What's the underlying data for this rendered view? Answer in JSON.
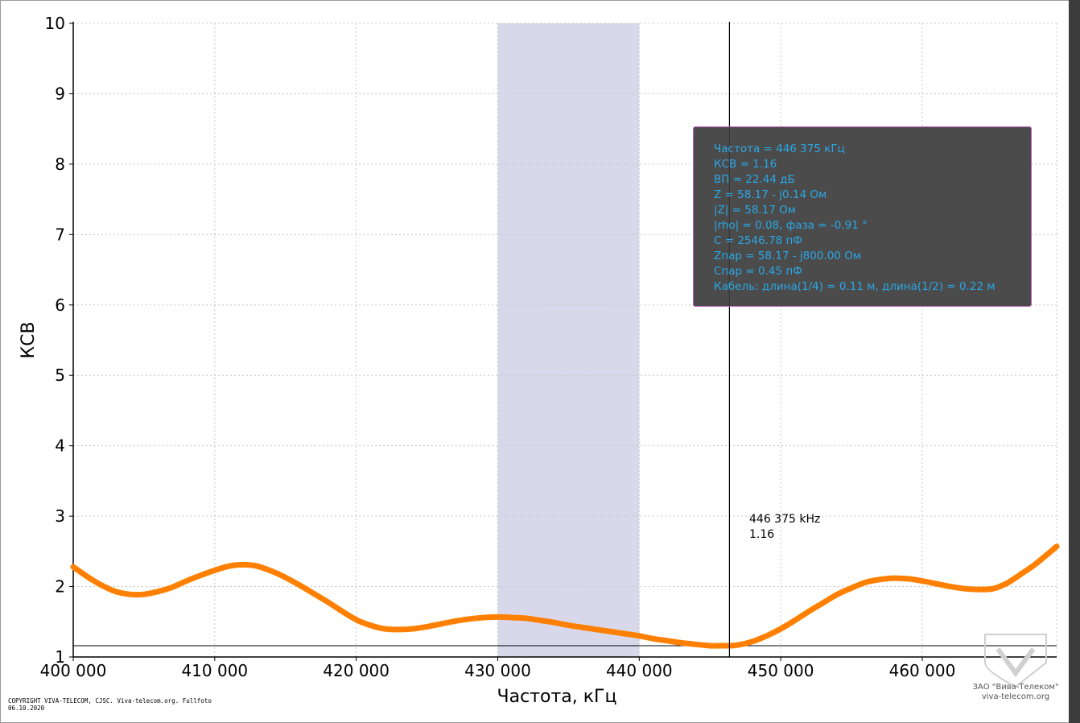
{
  "chart_data": {
    "type": "line",
    "xlabel": "Частота, кГц",
    "ylabel": "КСВ",
    "xlim": [
      400000,
      469500
    ],
    "ylim": [
      1,
      10
    ],
    "x_ticks": [
      400000,
      410000,
      420000,
      430000,
      440000,
      450000,
      460000
    ],
    "x_tick_labels": [
      "400 000",
      "410 000",
      "420 000",
      "430 000",
      "440 000",
      "450 000",
      "460 000"
    ],
    "y_ticks": [
      1,
      2,
      3,
      4,
      5,
      6,
      7,
      8,
      9,
      10
    ],
    "y_tick_labels": [
      "1",
      "2",
      "3",
      "4",
      "5",
      "6",
      "7",
      "8",
      "9",
      "10"
    ],
    "grid": true,
    "highlight_band": [
      430000,
      440000
    ],
    "reference_line_y": 1.16,
    "marker_x": 446375,
    "series": [
      {
        "x": [
          400000,
          401000,
          402000,
          403000,
          404000,
          405000,
          406000,
          407000,
          408000,
          409000,
          410000,
          411000,
          412000,
          413000,
          414000,
          415000,
          416000,
          417000,
          418000,
          419000,
          420000,
          421000,
          422000,
          423000,
          424000,
          425000,
          426000,
          427000,
          428000,
          429000,
          430000,
          431000,
          432000,
          433000,
          434000,
          435000,
          436000,
          437000,
          438000,
          439000,
          440000,
          441000,
          442000,
          443000,
          444000,
          445000,
          446000,
          446375,
          447000,
          448000,
          449000,
          450000,
          451000,
          452000,
          453000,
          454000,
          455000,
          456000,
          457000,
          458000,
          459000,
          460000,
          461000,
          462000,
          463000,
          464000,
          465000,
          466000,
          467000,
          468000,
          469500
        ],
        "y": [
          2.28,
          2.14,
          2.02,
          1.93,
          1.89,
          1.89,
          1.93,
          1.99,
          2.08,
          2.16,
          2.23,
          2.29,
          2.31,
          2.29,
          2.22,
          2.13,
          2.02,
          1.9,
          1.78,
          1.65,
          1.53,
          1.45,
          1.4,
          1.39,
          1.4,
          1.43,
          1.47,
          1.51,
          1.54,
          1.56,
          1.57,
          1.56,
          1.55,
          1.52,
          1.49,
          1.45,
          1.42,
          1.39,
          1.36,
          1.33,
          1.3,
          1.26,
          1.23,
          1.2,
          1.18,
          1.16,
          1.16,
          1.16,
          1.17,
          1.22,
          1.3,
          1.4,
          1.52,
          1.65,
          1.77,
          1.89,
          1.98,
          2.06,
          2.1,
          2.12,
          2.11,
          2.08,
          2.04,
          2.0,
          1.97,
          1.96,
          1.97,
          2.05,
          2.18,
          2.32,
          2.57
        ],
        "color": "#ff8000"
      }
    ]
  },
  "info_box": {
    "lines": [
      "Частота = 446 375 кГц",
      "КСВ = 1.16",
      "ВП = 22.44 дБ",
      "Z = 58.17 - j0.14 Ом",
      "|Z| = 58.17 Ом",
      "|rho| = 0.08, фаза = -0.91 °",
      "C = 2546.78 пФ",
      "Zпар = 58.17 - j800.00 Ом",
      "Cпар = 0.45 пФ",
      "Кабель: длина(1/4) = 0.11 м, длина(1/2) = 0.22 м"
    ]
  },
  "marker_label": {
    "line1": "446 375 kHz",
    "line2": "1.16"
  },
  "copyright": "COPYRIGHT VIVA-TELECOM, CJSC. Viva-telecom.org. Fullfoto\n06.10.2020",
  "watermark": {
    "line1": "ЗАО \"Вива-Телеком\"",
    "line2": "viva-telecom.org"
  },
  "colors": {
    "curve": "#ff8000",
    "band": "#d8d8ea",
    "info_text": "#2aa7e6",
    "info_bg": "#3c3c3c",
    "info_border": "#c060c0"
  }
}
